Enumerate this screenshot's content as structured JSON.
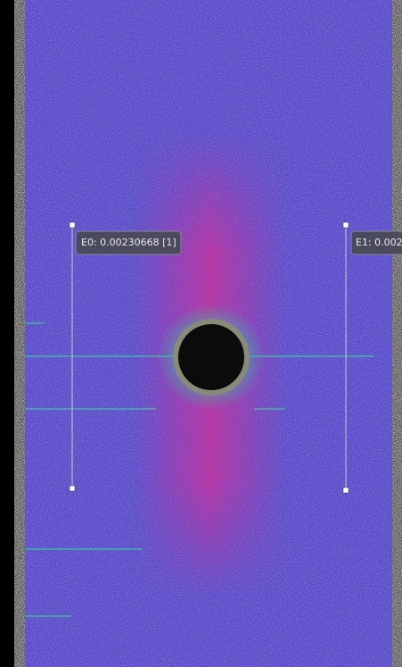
{
  "extensometers": [
    {
      "label": "E0: 0.00230668 [1]"
    },
    {
      "label": "E1: 0.002"
    }
  ]
}
